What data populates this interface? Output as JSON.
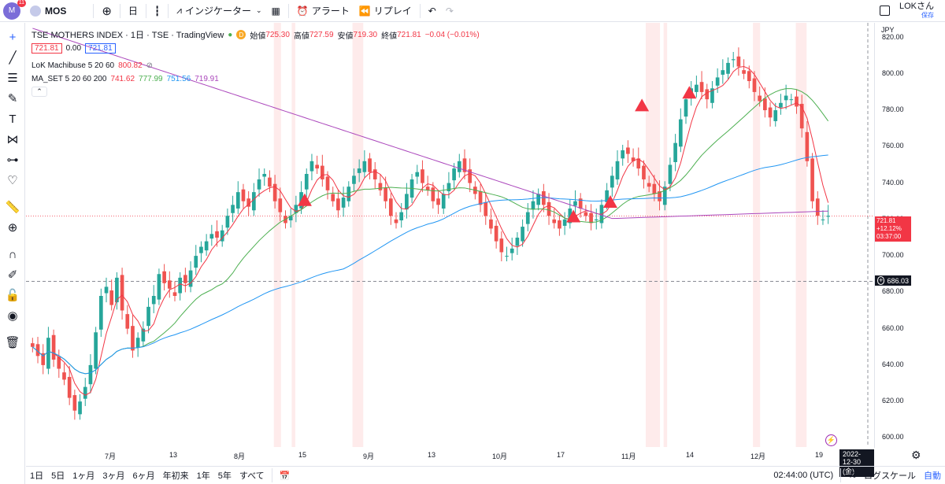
{
  "topbar": {
    "avatar_letter": "M",
    "avatar_badge": "11",
    "symbol": "MOS",
    "indicators_label": "インジケーター",
    "alert_label": "アラート",
    "replay_label": "リプレイ",
    "user_name": "LOKさん",
    "save_label": "保存"
  },
  "legend": {
    "title": "TSE MOTHERS INDEX · 1日 · TSE · TradingView",
    "open_label": "始値",
    "open": "725.30",
    "high_label": "高値",
    "high": "727.59",
    "low_label": "安値",
    "low": "719.30",
    "close_label": "終値",
    "close": "721.81",
    "change": "−0.04 (−0.01%)",
    "bid": "721.81",
    "spread": "0.00",
    "ask": "721.81",
    "ind1_name": "LoK Machibuse 5 20 60",
    "ind1_val": "800.82",
    "ind2_name": "MA_SET 5 20 60 200",
    "ind2_v1": "741.62",
    "ind2_v2": "777.99",
    "ind2_v3": "751.56",
    "ind2_v4": "719.91"
  },
  "price_scale": {
    "currency": "JPY",
    "ticks": [
      "820.00",
      "800.00",
      "780.00",
      "760.00",
      "740.00",
      "720.00",
      "700.00",
      "680.00",
      "660.00",
      "640.00",
      "620.00",
      "600.00"
    ],
    "last_price": "721.81",
    "last_change": "+12.12%",
    "countdown": "03:37:00",
    "crosshair_price": "686.03"
  },
  "time_axis": {
    "labels": [
      "7月",
      "13",
      "8月",
      "15",
      "9月",
      "13",
      "10月",
      "17",
      "11月",
      "14",
      "12月",
      "19"
    ],
    "crosshair_date": "2022-12-30 (金)"
  },
  "bottom": {
    "ranges": [
      "1日",
      "5日",
      "1ヶ月",
      "3ヶ月",
      "6ヶ月",
      "年初来",
      "1年",
      "5年",
      "すべて"
    ],
    "clock": "02:44:00 (UTC)",
    "percent": "%",
    "log": "ログスケール",
    "auto": "自動"
  },
  "colors": {
    "up": "#26a69a",
    "down": "#ef5350",
    "ma5": "#f23645",
    "ma20": "#4caf50",
    "ma60": "#2196f3",
    "ma200": "#ab47bc",
    "highlight": "#fde3e3"
  },
  "chart_data": {
    "type": "candlestick",
    "ylim": [
      595,
      828
    ],
    "close_series": [
      650,
      645,
      640,
      655,
      643,
      638,
      632,
      622,
      615,
      620,
      628,
      640,
      658,
      678,
      683,
      673,
      688,
      670,
      660,
      648,
      655,
      660,
      672,
      678,
      690,
      685,
      682,
      678,
      688,
      685,
      692,
      700,
      705,
      708,
      712,
      710,
      714,
      722,
      728,
      735,
      730,
      727,
      735,
      742,
      745,
      738,
      730,
      724,
      718,
      722,
      728,
      735,
      745,
      752,
      748,
      742,
      736,
      730,
      725,
      732,
      738,
      744,
      748,
      752,
      746,
      742,
      736,
      730,
      722,
      718,
      724,
      734,
      742,
      746,
      740,
      736,
      730,
      728,
      734,
      740,
      748,
      752,
      746,
      740,
      734,
      728,
      722,
      715,
      708,
      702,
      700,
      704,
      710,
      716,
      724,
      730,
      734,
      728,
      722,
      718,
      715,
      720,
      726,
      730,
      726,
      722,
      718,
      720,
      728,
      736,
      744,
      752,
      758,
      756,
      752,
      748,
      742,
      738,
      734,
      730,
      738,
      750,
      762,
      775,
      786,
      792,
      794,
      790,
      786,
      792,
      798,
      802,
      806,
      808,
      804,
      800,
      796,
      790,
      785,
      780,
      776,
      780,
      784,
      788,
      786,
      782,
      770,
      752,
      730,
      722,
      720,
      722
    ]
  }
}
